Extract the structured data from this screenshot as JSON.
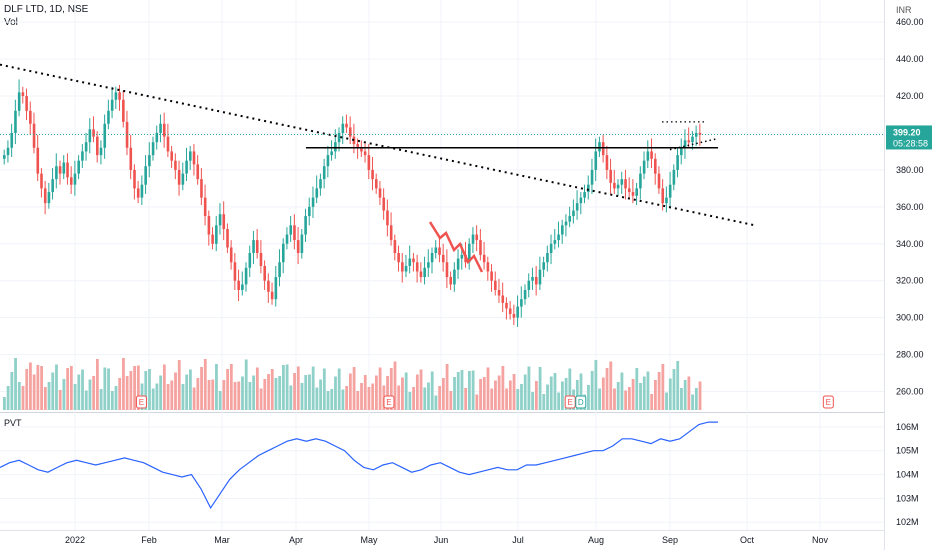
{
  "header": {
    "symbol_line": "DLF LTD, 1D, NSE",
    "volume_label": "Vol",
    "currency": "INR",
    "indicator_label": "PVT"
  },
  "price_badge": {
    "price": "399.20",
    "countdown": "05:28:58",
    "color": "#26a69a"
  },
  "colors": {
    "up": "#26a69a",
    "down": "#ef5350",
    "vol_up": "#8fd0c8",
    "vol_down": "#f5a3a1",
    "pvt_line": "#2962ff",
    "earn": "#ef5350",
    "div": "#26a69a"
  },
  "chart_data": {
    "type": "candlestick",
    "price_axis": {
      "ticks": [
        "460.00",
        "440.00",
        "420.00",
        "400.00",
        "380.00",
        "360.00",
        "340.00",
        "320.00",
        "300.00",
        "280.00",
        "260.00"
      ],
      "range": [
        250,
        472
      ]
    },
    "time_axis": {
      "labels": [
        "2022",
        "Feb",
        "Mar",
        "Apr",
        "May",
        "Jun",
        "Jul",
        "Aug",
        "Sep",
        "Oct",
        "Nov"
      ]
    },
    "pvt_axis": {
      "ticks": [
        "106M",
        "105M",
        "104M",
        "103M",
        "102M"
      ],
      "range": [
        101.8,
        106.5
      ]
    },
    "last_price": 399.2,
    "close_series": [
      388,
      392,
      400,
      412,
      422,
      420,
      412,
      405,
      392,
      378,
      370,
      362,
      368,
      375,
      382,
      378,
      384,
      376,
      372,
      378,
      385,
      390,
      395,
      402,
      398,
      388,
      392,
      405,
      412,
      418,
      422,
      418,
      406,
      392,
      380,
      370,
      365,
      372,
      382,
      388,
      395,
      400,
      405,
      398,
      390,
      385,
      380,
      372,
      378,
      385,
      390,
      383,
      375,
      365,
      355,
      345,
      340,
      350,
      356,
      348,
      338,
      330,
      320,
      315,
      318,
      327,
      335,
      342,
      335,
      328,
      320,
      314,
      310,
      322,
      330,
      340,
      345,
      350,
      342,
      335,
      345,
      355,
      360,
      365,
      370,
      375,
      382,
      388,
      390,
      395,
      400,
      405,
      403,
      398,
      394,
      392,
      390,
      388,
      380,
      375,
      370,
      365,
      358,
      350,
      342,
      335,
      330,
      325,
      328,
      332,
      330,
      325,
      322,
      327,
      330,
      335,
      338,
      334,
      330,
      322,
      318,
      326,
      332,
      334,
      330,
      340,
      345,
      342,
      334,
      330,
      325,
      320,
      315,
      312,
      308,
      305,
      302,
      300,
      306,
      310,
      315,
      320,
      322,
      318,
      326,
      330,
      335,
      340,
      342,
      345,
      350,
      352,
      355,
      358,
      362,
      365,
      368,
      372,
      380,
      390,
      395,
      388,
      380,
      373,
      370,
      372,
      375,
      370,
      368,
      366,
      370,
      378,
      385,
      390,
      386,
      378,
      370,
      362,
      365,
      372,
      380,
      388,
      392,
      396,
      395,
      398,
      400,
      399
    ],
    "volume_note": "daily volume bars",
    "pvt_series": [
      104.3,
      104.5,
      104.6,
      104.4,
      104.2,
      104.1,
      104.3,
      104.5,
      104.6,
      104.5,
      104.4,
      104.5,
      104.6,
      104.7,
      104.6,
      104.5,
      104.3,
      104.1,
      104.0,
      103.9,
      104.0,
      103.4,
      102.6,
      103.2,
      103.8,
      104.2,
      104.5,
      104.8,
      105.0,
      105.2,
      105.4,
      105.5,
      105.4,
      105.5,
      105.4,
      105.2,
      105.0,
      104.6,
      104.3,
      104.2,
      104.4,
      104.5,
      104.3,
      104.1,
      104.2,
      104.4,
      104.5,
      104.3,
      104.1,
      104.0,
      104.1,
      104.2,
      104.3,
      104.2,
      104.2,
      104.4,
      104.4,
      104.5,
      104.6,
      104.7,
      104.8,
      104.9,
      105.0,
      105.0,
      105.2,
      105.5,
      105.5,
      105.4,
      105.3,
      105.5,
      105.4,
      105.5,
      105.8,
      106.1,
      106.2,
      106.2
    ],
    "overlays": [
      {
        "kind": "dotted-trendline",
        "from": [
          "2022-01-01",
          437
        ],
        "to": [
          "2022-09-25",
          350
        ]
      },
      {
        "kind": "horizontal-line",
        "level": 392
      },
      {
        "kind": "dotted-line",
        "level": 406
      },
      {
        "kind": "dotted-trendline-short",
        "from": [
          "2022-09-01",
          391
        ],
        "to": [
          "2022-09-12",
          396
        ]
      }
    ],
    "events": [
      {
        "type": "earnings",
        "label": "E",
        "x_frac": 0.16
      },
      {
        "type": "earnings",
        "label": "E",
        "x_frac": 0.44
      },
      {
        "type": "earnings",
        "label": "E",
        "x_frac": 0.645
      },
      {
        "type": "dividend",
        "label": "D",
        "x_frac": 0.657
      },
      {
        "type": "earnings-future",
        "label": "E",
        "x_frac": 0.937
      }
    ]
  }
}
